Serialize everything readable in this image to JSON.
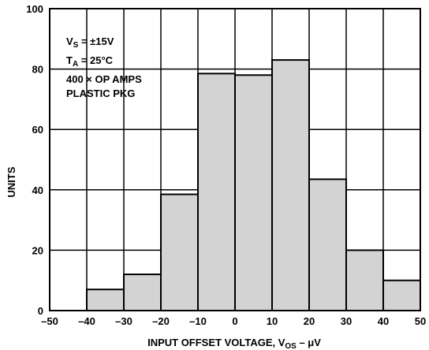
{
  "chart_data": {
    "type": "bar",
    "title": "",
    "xlabel": {
      "prefix": "INPUT OFFSET VOLTAGE, V",
      "subscript": "OS",
      "suffix": " – μV"
    },
    "ylabel": "UNITS",
    "xlim": [
      -50,
      50
    ],
    "ylim": [
      0,
      100
    ],
    "x_ticks": [
      "–50",
      "–40",
      "–30",
      "–20",
      "–10",
      "0",
      "10",
      "20",
      "30",
      "40",
      "50"
    ],
    "y_ticks": [
      "0",
      "20",
      "40",
      "60",
      "80",
      "100"
    ],
    "bins": [
      {
        "from": -40,
        "to": -30,
        "value": 7
      },
      {
        "from": -30,
        "to": -20,
        "value": 12
      },
      {
        "from": -20,
        "to": -10,
        "value": 38.5
      },
      {
        "from": -10,
        "to": 0,
        "value": 78.5
      },
      {
        "from": 0,
        "to": 10,
        "value": 78
      },
      {
        "from": 10,
        "to": 20,
        "value": 83
      },
      {
        "from": 20,
        "to": 30,
        "value": 43.5
      },
      {
        "from": 30,
        "to": 40,
        "value": 20
      },
      {
        "from": 40,
        "to": 50,
        "value": 10
      }
    ],
    "grid": true,
    "bar_fill": "#d3d3d3",
    "bar_edge": "#000000",
    "annotation": [
      {
        "main": "V",
        "sub": "S",
        "rest": " = ±15V"
      },
      {
        "main": "T",
        "sub": "A",
        "rest": " = 25°C"
      },
      {
        "main": "400 × OP AMPS",
        "sub": "",
        "rest": ""
      },
      {
        "main": "PLASTIC PKG",
        "sub": "",
        "rest": ""
      }
    ]
  }
}
